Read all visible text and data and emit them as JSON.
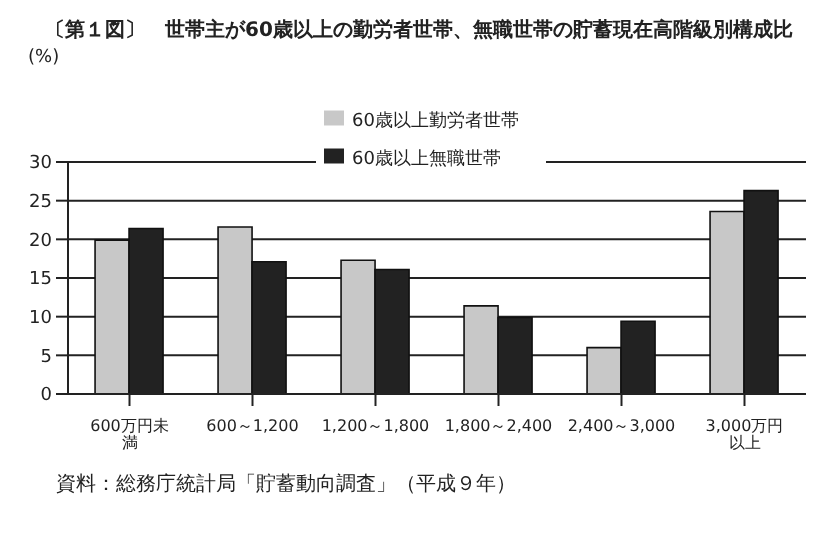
{
  "chart_data": {
    "type": "bar",
    "title": "〔第１図〕　世帯主が60歳以上の勤労者世帯、無職世帯の貯蓄現在高階級別構成比",
    "ylabel": "(%)",
    "categories": [
      "600万円未満",
      "600～1,200",
      "1,200～1,800",
      "1,800～2,400",
      "2,400～3,000",
      "3,000万円以上"
    ],
    "series": [
      {
        "name": "60歳以上勤労者世帯",
        "color": "#c8c8c8",
        "values": [
          19.9,
          21.6,
          17.3,
          11.4,
          6.0,
          23.6
        ]
      },
      {
        "name": "60歳以上無職世帯",
        "color": "#222222",
        "values": [
          21.4,
          17.1,
          16.1,
          9.9,
          9.4,
          26.3
        ]
      }
    ],
    "ylim": [
      0,
      30
    ],
    "yticks": [
      0,
      5,
      10,
      15,
      20,
      25,
      30
    ],
    "grid": "y",
    "legend": "top",
    "annotations": [
      "資料：総務庁統計局「貯蓄動向調査」（平成９年）"
    ]
  }
}
